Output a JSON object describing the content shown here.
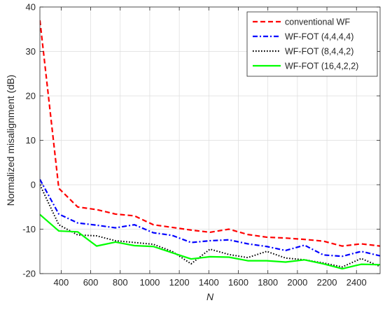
{
  "chart_data": {
    "type": "line",
    "title": "",
    "xlabel": "N",
    "ylabel": "Normalized misalignment (dB)",
    "xlim": [
      256,
      2560
    ],
    "ylim": [
      -20,
      40
    ],
    "grid": true,
    "legend_position": "top-right",
    "xticks": [
      400,
      600,
      800,
      1000,
      1200,
      1400,
      1600,
      1800,
      2000,
      2200,
      2400
    ],
    "yticks": [
      -20,
      -10,
      0,
      10,
      20,
      30,
      40
    ],
    "series": [
      {
        "name": "conventional WF",
        "color": "#ff0000",
        "style": "dashed",
        "x": [
          256,
          384,
          512,
          640,
          768,
          896,
          1024,
          1152,
          1280,
          1408,
          1536,
          1664,
          1792,
          1920,
          2048,
          2176,
          2304,
          2432,
          2560
        ],
        "y": [
          37,
          -0.8,
          -5.0,
          -5.6,
          -6.6,
          -7.0,
          -9.0,
          -9.6,
          -10.2,
          -10.7,
          -10.0,
          -11.2,
          -11.8,
          -12.0,
          -12.3,
          -12.7,
          -13.8,
          -13.3,
          -13.8
        ]
      },
      {
        "name": "WF-FOT (4,4,4,4)",
        "color": "#0000ff",
        "style": "dashdot",
        "x": [
          256,
          384,
          512,
          640,
          768,
          896,
          1024,
          1152,
          1280,
          1408,
          1536,
          1664,
          1792,
          1920,
          2048,
          2176,
          2304,
          2432,
          2560
        ],
        "y": [
          1.2,
          -6.6,
          -8.6,
          -9.1,
          -9.7,
          -9.0,
          -10.8,
          -11.4,
          -13.0,
          -12.6,
          -12.4,
          -13.3,
          -13.9,
          -14.8,
          -13.6,
          -15.8,
          -16.1,
          -15.0,
          -16.0
        ]
      },
      {
        "name": "WF-FOT (8,4,4,2)",
        "color": "#000000",
        "style": "dotted",
        "x": [
          256,
          384,
          512,
          640,
          768,
          896,
          1024,
          1152,
          1280,
          1408,
          1536,
          1664,
          1792,
          1920,
          2048,
          2176,
          2304,
          2432,
          2560
        ],
        "y": [
          0.0,
          -9.0,
          -11.3,
          -11.5,
          -12.6,
          -13.0,
          -13.4,
          -15.0,
          -17.8,
          -14.5,
          -15.7,
          -16.4,
          -15.0,
          -16.5,
          -16.9,
          -17.6,
          -18.5,
          -16.6,
          -18.4
        ]
      },
      {
        "name": "WF-FOT (16,4,2,2)",
        "color": "#00ff00",
        "style": "solid",
        "x": [
          256,
          384,
          512,
          640,
          768,
          896,
          1024,
          1152,
          1280,
          1408,
          1536,
          1664,
          1792,
          1920,
          2048,
          2176,
          2304,
          2432,
          2560
        ],
        "y": [
          -6.7,
          -10.4,
          -10.6,
          -13.8,
          -12.9,
          -13.7,
          -13.9,
          -15.3,
          -16.7,
          -16.2,
          -16.3,
          -17.1,
          -17.1,
          -17.4,
          -16.9,
          -17.8,
          -18.9,
          -17.9,
          -18.0
        ]
      }
    ]
  }
}
